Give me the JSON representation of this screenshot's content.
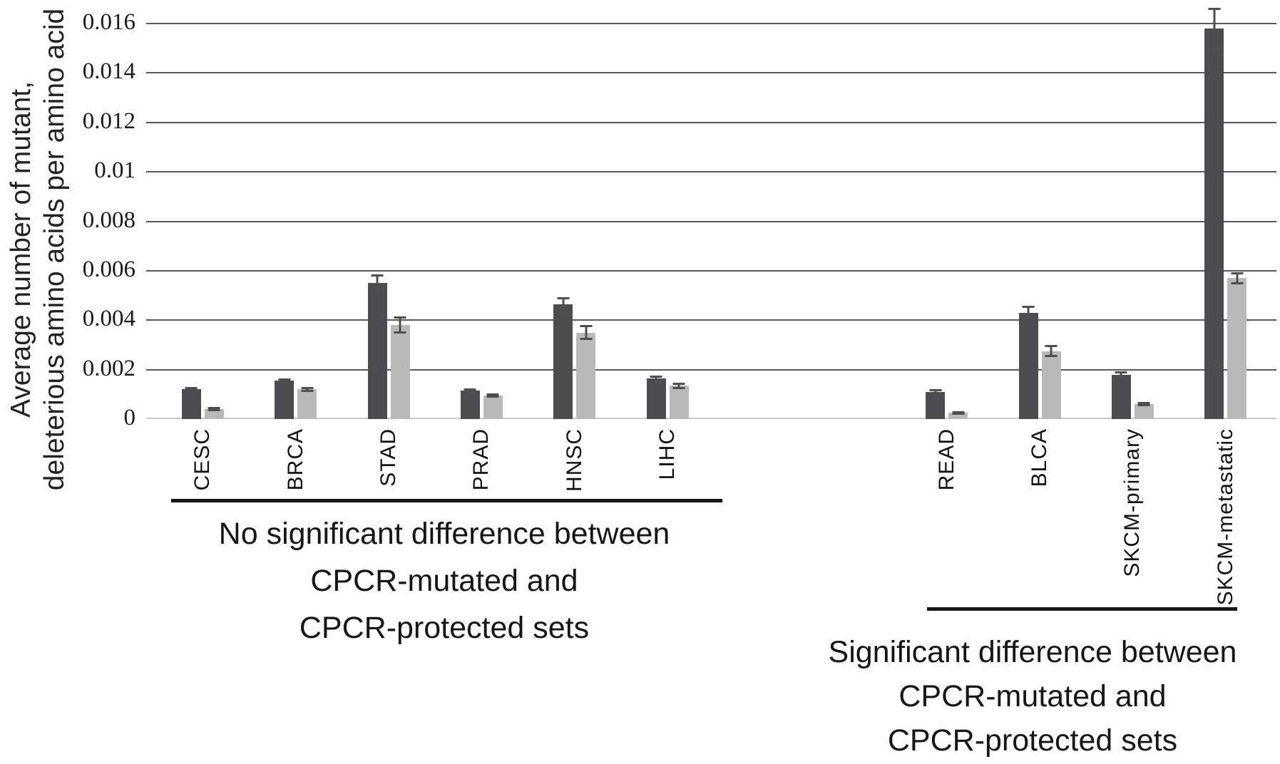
{
  "figure": {
    "y_axis_title_line1": "Average number of mutant,",
    "y_axis_title_line2": "deleterious amino acids per amino acid"
  },
  "chart_data": {
    "type": "bar",
    "title": "",
    "xlabel": "",
    "ylabel": "Average number of mutant, deleterious amino acids per amino acid",
    "ylim": [
      0,
      0.016
    ],
    "ytick_step": 0.002,
    "y_ticks": [
      "0",
      "0.002",
      "0.004",
      "0.006",
      "0.008",
      "0.01",
      "0.012",
      "0.014",
      "0.016"
    ],
    "grid": "horizontal",
    "legend": "none",
    "error_bars": true,
    "colors": {
      "dark_series": "#4d4d4f",
      "light_series": "#b9b9b9",
      "gridline": "#58585a",
      "baseline": "#c9c9c9",
      "error_bar": "#4f4f51",
      "bracket": "#161616"
    },
    "categories": [
      "CESC",
      "BRCA",
      "STAD",
      "PRAD",
      "HNSC",
      "LIHC",
      "READ",
      "BLCA",
      "SKCM-primary",
      "SKCM-metastatic"
    ],
    "series": [
      {
        "name": "CPCR-mutated",
        "values": [
          0.0012,
          0.00155,
          0.0055,
          0.00115,
          0.00465,
          0.00165,
          0.0011,
          0.0043,
          0.0018,
          0.0158
        ],
        "errors": [
          5e-05,
          5e-05,
          0.0003,
          5e-05,
          0.00025,
          7e-05,
          6e-05,
          0.00025,
          8e-05,
          0.0008
        ]
      },
      {
        "name": "CPCR-protected",
        "values": [
          0.0004,
          0.0012,
          0.0038,
          0.00095,
          0.0035,
          0.00135,
          0.00025,
          0.00275,
          0.0006,
          0.0057
        ],
        "errors": [
          4e-05,
          6e-05,
          0.0003,
          4e-05,
          0.00025,
          8e-05,
          3e-05,
          0.0002,
          4e-05,
          0.0002
        ]
      }
    ],
    "groups": [
      {
        "categories": [
          "CESC",
          "BRCA",
          "STAD",
          "PRAD",
          "HNSC",
          "LIHC"
        ],
        "label_lines": [
          "No significant difference between",
          "CPCR-mutated and",
          "CPCR-protected sets"
        ]
      },
      {
        "categories": [
          "READ",
          "BLCA",
          "SKCM-primary",
          "SKCM-metastatic"
        ],
        "label_lines": [
          "Significant difference between",
          "CPCR-mutated and",
          "CPCR-protected sets"
        ]
      }
    ],
    "layout_hint": {
      "slots_total": 12,
      "empty_slots_between_groups": 2
    }
  }
}
